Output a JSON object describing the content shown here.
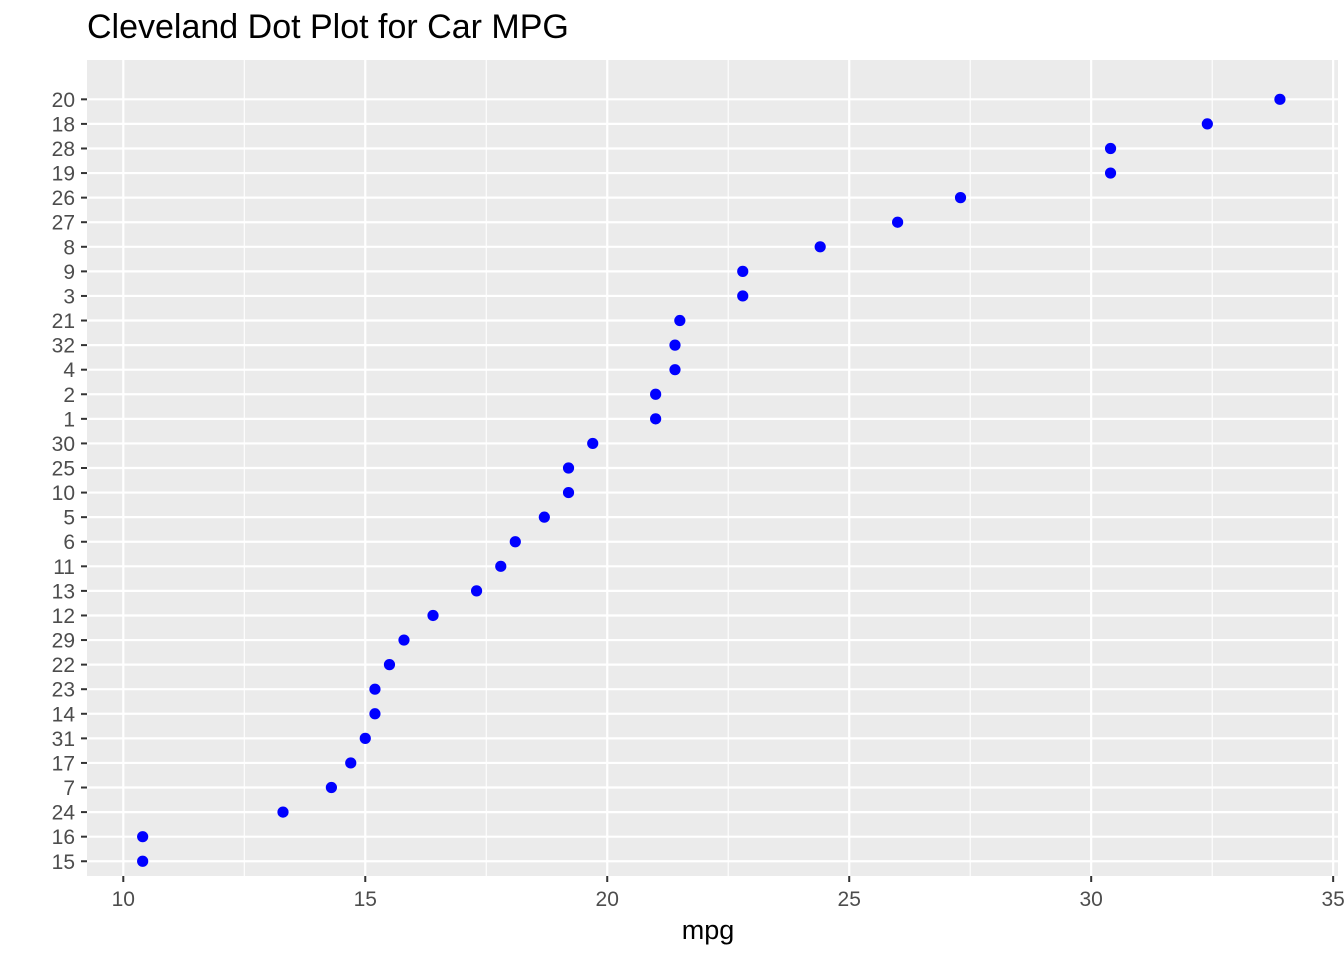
{
  "chart_data": {
    "type": "scatter",
    "title": "Cleveland Dot Plot for Car MPG",
    "xlabel": "mpg",
    "ylabel": "",
    "xlim": [
      9.25,
      35.1
    ],
    "x_ticks": [
      10,
      15,
      20,
      25,
      30,
      35
    ],
    "x_minor_ticks": [
      12.5,
      17.5,
      22.5,
      27.5,
      32.5
    ],
    "grid": true,
    "legend": "none",
    "categories": [
      "15",
      "16",
      "24",
      "7",
      "17",
      "31",
      "14",
      "23",
      "22",
      "29",
      "12",
      "13",
      "11",
      "6",
      "5",
      "10",
      "25",
      "30",
      "1",
      "2",
      "4",
      "32",
      "21",
      "3",
      "9",
      "8",
      "27",
      "26",
      "19",
      "28",
      "18",
      "20"
    ],
    "values": [
      10.4,
      10.4,
      13.3,
      14.3,
      14.7,
      15.0,
      15.2,
      15.2,
      15.5,
      15.8,
      16.4,
      17.3,
      17.8,
      18.1,
      18.7,
      19.2,
      19.2,
      19.7,
      21.0,
      21.0,
      21.4,
      21.4,
      21.5,
      22.8,
      22.8,
      24.4,
      26.0,
      27.3,
      30.4,
      30.4,
      32.4,
      33.9
    ],
    "colors": {
      "point": "#0000ff",
      "panel_background": "#ebebeb",
      "grid": "#ffffff",
      "tick": "#333333",
      "tick_label": "#4d4d4d",
      "text": "#000000"
    }
  }
}
